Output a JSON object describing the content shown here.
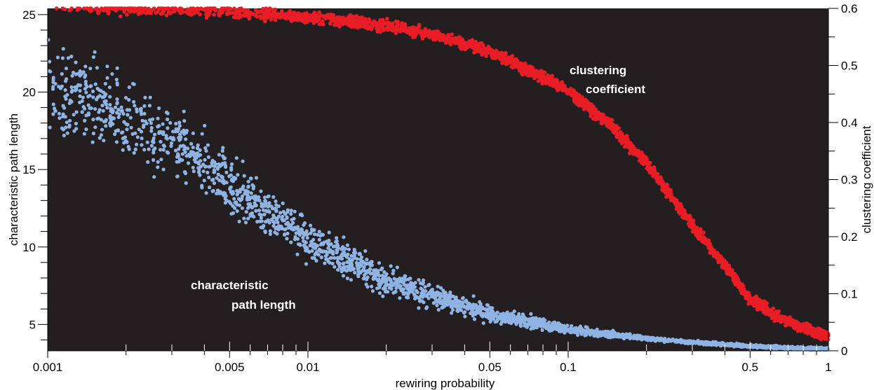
{
  "chart_data": {
    "type": "scatter",
    "xlabel": "rewiring probability",
    "ylabel_left": "characteristic path length",
    "ylabel_right": "clustering coefficient",
    "x_scale": "log",
    "xlim": [
      0.001,
      1
    ],
    "ylim_left": [
      3.3,
      25.4
    ],
    "ylim_right": [
      0,
      0.6
    ],
    "x_tick_labels": [
      "0.001",
      "0.005",
      "0.01",
      "0.05",
      "0.1",
      "0.5",
      "1"
    ],
    "y_left_tick_labels": [
      "5",
      "10",
      "15",
      "20",
      "25"
    ],
    "y_right_tick_labels": [
      "0",
      "0.1",
      "0.2",
      "0.3",
      "0.4",
      "0.5",
      "0.6"
    ],
    "background_color": "#231f20",
    "annotations": {
      "clustering_line1": "clustering",
      "clustering_line2": "coefficient",
      "path_line1": "characteristic",
      "path_line2": "path length"
    },
    "series": [
      {
        "axis": "left",
        "color": "#8fb3e3",
        "trend_x": [
          0.001,
          0.002,
          0.003,
          0.005,
          0.01,
          0.02,
          0.03,
          0.05,
          0.1,
          0.2,
          0.3,
          0.5,
          1
        ],
        "trend_y": [
          20.5,
          18.5,
          17.0,
          14.0,
          10.5,
          7.8,
          6.8,
          5.7,
          4.7,
          4.1,
          3.85,
          3.6,
          3.4
        ]
      },
      {
        "axis": "right",
        "color": "#e81d25",
        "trend_x": [
          0.001,
          0.003,
          0.005,
          0.01,
          0.02,
          0.03,
          0.05,
          0.08,
          0.1,
          0.15,
          0.2,
          0.3,
          0.4,
          0.5,
          0.7,
          1
        ],
        "trend_y": [
          0.6,
          0.598,
          0.594,
          0.585,
          0.57,
          0.555,
          0.525,
          0.48,
          0.455,
          0.39,
          0.33,
          0.22,
          0.15,
          0.09,
          0.05,
          0.025
        ]
      }
    ]
  }
}
